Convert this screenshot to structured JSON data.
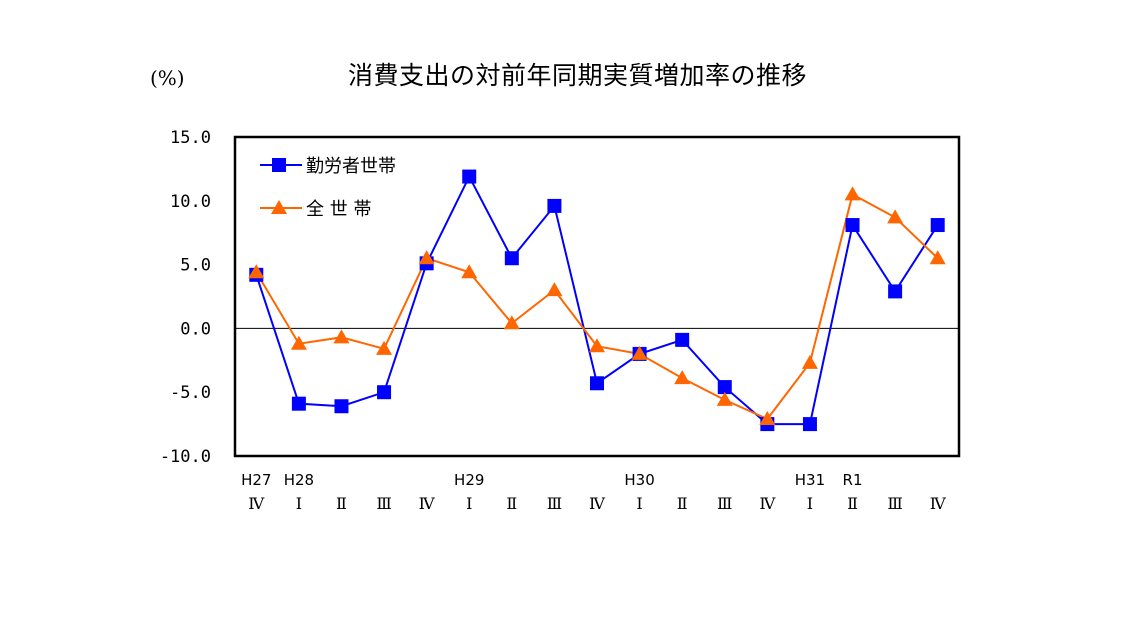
{
  "header": {
    "title": "消費支出の対前年同期実質増加率の推移",
    "unit": "(%)"
  },
  "legend": {
    "items": [
      {
        "label": "勤労者世帯",
        "marker": "square",
        "color": "#0000FF"
      },
      {
        "label": "全 世 帯",
        "marker": "triangle",
        "color": "#FF6600"
      }
    ]
  },
  "colors": {
    "workers": "#0000FF",
    "all": "#FF6600",
    "axis": "#000000"
  },
  "chart_data": {
    "type": "line",
    "title": "消費支出の対前年同期実質増加率の推移",
    "xlabel": "",
    "ylabel": "(%)",
    "ylim": [
      -10,
      15
    ],
    "yticks": [
      "15.0",
      "10.0",
      "5.0",
      "0.0",
      "-5.0",
      "-10.0"
    ],
    "ytick_values": [
      15,
      10,
      5,
      0,
      -5,
      -10
    ],
    "grid": false,
    "zero_line": true,
    "legend_position": "upper-left inside",
    "categories": [
      "H27 Ⅳ",
      "H28 Ⅰ",
      "Ⅱ",
      "Ⅲ",
      "Ⅳ",
      "H29 Ⅰ",
      "Ⅱ",
      "Ⅲ",
      "Ⅳ",
      "H30 Ⅰ",
      "Ⅱ",
      "Ⅲ",
      "Ⅳ",
      "H31 Ⅰ",
      "R1 Ⅱ",
      "Ⅲ",
      "Ⅳ"
    ],
    "x_era_labels": [
      "H27",
      "H28",
      "",
      "",
      "",
      "H29",
      "",
      "",
      "",
      "H30",
      "",
      "",
      "",
      "H31",
      "R1",
      "",
      ""
    ],
    "x_quarter_labels": [
      "Ⅳ",
      "Ⅰ",
      "Ⅱ",
      "Ⅲ",
      "Ⅳ",
      "Ⅰ",
      "Ⅱ",
      "Ⅲ",
      "Ⅳ",
      "Ⅰ",
      "Ⅱ",
      "Ⅲ",
      "Ⅳ",
      "Ⅰ",
      "Ⅱ",
      "Ⅲ",
      "Ⅳ"
    ],
    "series": [
      {
        "name": "勤労者世帯",
        "marker": "square",
        "color": "#0000FF",
        "values": [
          4.2,
          -5.9,
          -6.1,
          -5.0,
          5.1,
          11.9,
          5.5,
          9.6,
          -4.3,
          -2.0,
          -0.9,
          -4.6,
          -7.5,
          -7.5,
          8.1,
          2.9,
          8.1
        ]
      },
      {
        "name": "全 世 帯",
        "marker": "triangle",
        "color": "#FF6600",
        "values": [
          4.4,
          -1.2,
          -0.7,
          -1.6,
          5.5,
          4.4,
          0.4,
          3.0,
          -1.4,
          -2.0,
          -3.9,
          -5.6,
          -7.1,
          -2.7,
          10.5,
          8.7,
          5.5
        ]
      }
    ]
  }
}
